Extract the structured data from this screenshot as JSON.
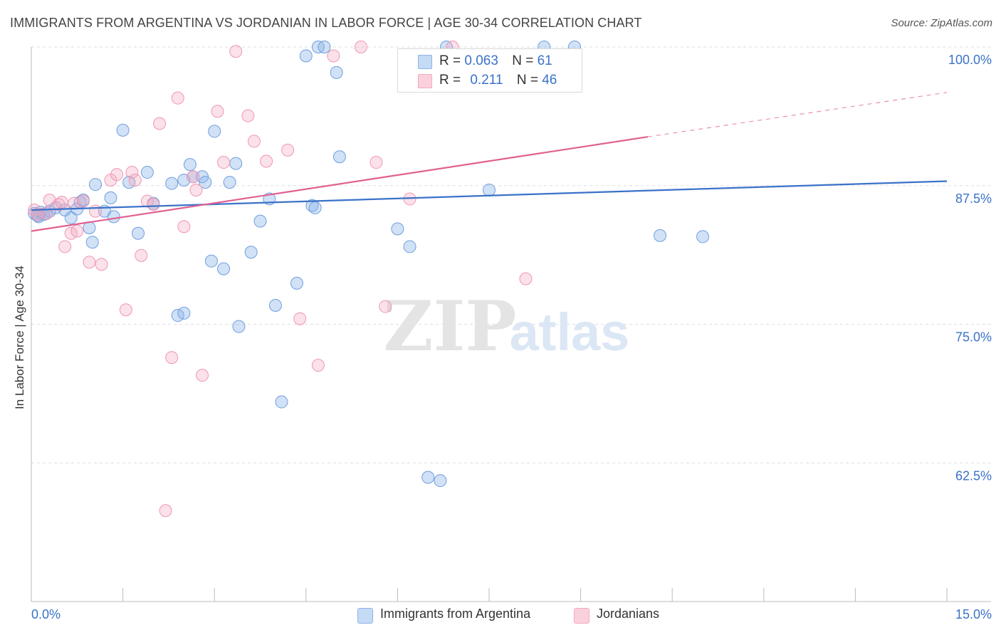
{
  "title": "IMMIGRANTS FROM ARGENTINA VS JORDANIAN IN LABOR FORCE | AGE 30-34 CORRELATION CHART",
  "source": "Source: ZipAtlas.com",
  "watermark": {
    "zip": "ZIP",
    "atlas": "atlas"
  },
  "legend_top": [
    {
      "r_label": "R =",
      "r_value": "0.063",
      "n_label": "N =",
      "n_value": "61"
    },
    {
      "r_label": "R =",
      "r_value": "0.211",
      "n_label": "N =",
      "n_value": "46"
    }
  ],
  "chart_data": {
    "type": "scatter",
    "xlabel": "",
    "ylabel": "In Labor Force | Age 30-34",
    "xlim": [
      0,
      15
    ],
    "ylim": [
      50,
      100
    ],
    "x_tick_labels": [
      "0.0%",
      "15.0%"
    ],
    "y_ticks": [
      62.5,
      75.0,
      87.5,
      100.0
    ],
    "y_tick_labels": [
      "62.5%",
      "75.0%",
      "87.5%",
      "100.0%"
    ],
    "grid": true,
    "legend": "bottom-center",
    "series": [
      {
        "name": "Immigrants from Argentina",
        "color": "#8db3e8",
        "line_color": "#3a72c8",
        "trend": {
          "x": [
            0,
            15
          ],
          "y": [
            85.3,
            87.9
          ]
        },
        "points": [
          [
            0.05,
            85.0
          ],
          [
            0.1,
            84.8
          ],
          [
            0.15,
            85.1
          ],
          [
            0.2,
            84.9
          ],
          [
            0.3,
            85.2
          ],
          [
            0.4,
            85.5
          ],
          [
            0.55,
            85.3
          ],
          [
            0.65,
            84.6
          ],
          [
            0.75,
            85.4
          ],
          [
            0.8,
            86.0
          ],
          [
            0.85,
            86.2
          ],
          [
            0.95,
            83.7
          ],
          [
            1.0,
            82.4
          ],
          [
            1.05,
            87.6
          ],
          [
            1.2,
            85.2
          ],
          [
            1.3,
            86.4
          ],
          [
            1.35,
            84.7
          ],
          [
            1.5,
            92.5
          ],
          [
            1.6,
            87.8
          ],
          [
            1.75,
            83.2
          ],
          [
            1.9,
            88.7
          ],
          [
            2.0,
            85.9
          ],
          [
            2.3,
            87.7
          ],
          [
            2.4,
            75.8
          ],
          [
            2.5,
            76.0
          ],
          [
            2.5,
            88.0
          ],
          [
            2.6,
            89.4
          ],
          [
            2.65,
            88.3
          ],
          [
            2.8,
            88.3
          ],
          [
            2.85,
            87.8
          ],
          [
            2.95,
            80.7
          ],
          [
            3.0,
            92.4
          ],
          [
            3.15,
            80.0
          ],
          [
            3.25,
            87.8
          ],
          [
            3.35,
            89.5
          ],
          [
            3.4,
            74.8
          ],
          [
            3.6,
            81.5
          ],
          [
            3.75,
            84.3
          ],
          [
            3.9,
            86.3
          ],
          [
            4.0,
            76.7
          ],
          [
            4.1,
            68.0
          ],
          [
            4.35,
            78.7
          ],
          [
            4.5,
            99.2
          ],
          [
            4.6,
            85.7
          ],
          [
            4.65,
            85.5
          ],
          [
            4.7,
            100.0
          ],
          [
            4.8,
            100.0
          ],
          [
            5.0,
            97.7
          ],
          [
            5.05,
            90.1
          ],
          [
            6.0,
            83.6
          ],
          [
            6.2,
            82.0
          ],
          [
            6.5,
            61.2
          ],
          [
            6.7,
            60.9
          ],
          [
            6.8,
            100.0
          ],
          [
            7.5,
            87.1
          ],
          [
            8.4,
            100.0
          ],
          [
            8.9,
            100.0
          ],
          [
            10.3,
            83.0
          ],
          [
            11.0,
            82.9
          ],
          [
            0.12,
            84.7
          ],
          [
            0.25,
            85.0
          ]
        ]
      },
      {
        "name": "Jordanians",
        "color": "#f4a8c0",
        "line_color": "#e06090",
        "trend": {
          "x": [
            0,
            10.1
          ],
          "y": [
            83.4,
            91.9
          ]
        },
        "trend_dashed": {
          "x": [
            10.1,
            15
          ],
          "y": [
            91.9,
            95.9
          ]
        },
        "points": [
          [
            0.05,
            85.3
          ],
          [
            0.1,
            84.9
          ],
          [
            0.25,
            85.0
          ],
          [
            0.3,
            86.2
          ],
          [
            0.45,
            85.8
          ],
          [
            0.5,
            86.0
          ],
          [
            0.55,
            82.0
          ],
          [
            0.65,
            83.2
          ],
          [
            0.7,
            85.9
          ],
          [
            0.75,
            83.4
          ],
          [
            0.85,
            86.1
          ],
          [
            0.95,
            80.6
          ],
          [
            1.05,
            85.2
          ],
          [
            1.15,
            80.4
          ],
          [
            1.3,
            88.0
          ],
          [
            1.4,
            88.5
          ],
          [
            1.55,
            76.3
          ],
          [
            1.65,
            88.7
          ],
          [
            1.7,
            88.0
          ],
          [
            1.8,
            81.2
          ],
          [
            1.9,
            86.1
          ],
          [
            2.0,
            85.8
          ],
          [
            2.1,
            93.1
          ],
          [
            2.2,
            58.2
          ],
          [
            2.3,
            72.0
          ],
          [
            2.4,
            95.4
          ],
          [
            2.5,
            83.8
          ],
          [
            2.65,
            88.3
          ],
          [
            2.7,
            87.1
          ],
          [
            2.8,
            70.4
          ],
          [
            3.05,
            94.2
          ],
          [
            3.15,
            89.6
          ],
          [
            3.35,
            99.6
          ],
          [
            3.55,
            93.8
          ],
          [
            3.65,
            91.5
          ],
          [
            3.85,
            89.7
          ],
          [
            4.2,
            90.7
          ],
          [
            4.4,
            75.5
          ],
          [
            4.7,
            71.3
          ],
          [
            4.95,
            99.2
          ],
          [
            5.4,
            100.0
          ],
          [
            5.65,
            89.6
          ],
          [
            5.8,
            76.6
          ],
          [
            6.2,
            86.3
          ],
          [
            8.1,
            79.1
          ],
          [
            6.9,
            100.0
          ]
        ]
      }
    ]
  },
  "legend_bottom": [
    "Immigrants from Argentina",
    "Jordanians"
  ]
}
